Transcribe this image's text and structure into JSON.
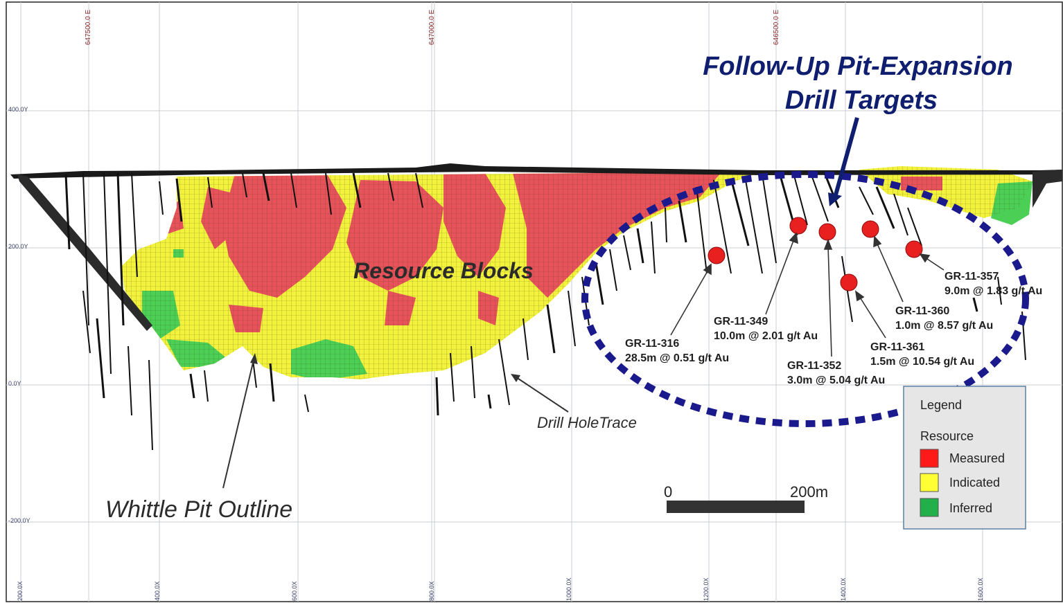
{
  "title": {
    "line1": "Follow-Up Pit-Expansion",
    "line2": "Drill Targets"
  },
  "top_axis_labels": [
    "647500.0 E",
    "647000.0 E",
    "646500.0 E"
  ],
  "left_axis_labels": [
    "400.0Y",
    "200.0Y",
    "0.0Y",
    "-200.0Y"
  ],
  "bottom_axis_labels": [
    "200.0X",
    "400.0X",
    "600.0X",
    "800.0X",
    "1000.0X",
    "1200.0X",
    "1400.0X",
    "1600.0X"
  ],
  "labels": {
    "resource_blocks": "Resource Blocks",
    "drill_hole_trace": "Drill HoleTrace",
    "whittle_pit": "Whittle Pit Outline"
  },
  "drill_hits": [
    {
      "hole": "GR-11-316",
      "result": "28.5m @ 0.51 g/t Au"
    },
    {
      "hole": "GR-11-349",
      "result": "10.0m @ 2.01 g/t Au"
    },
    {
      "hole": "GR-11-352",
      "result": "3.0m @ 5.04 g/t Au"
    },
    {
      "hole": "GR-11-361",
      "result": "1.5m @ 10.54 g/t Au"
    },
    {
      "hole": "GR-11-360",
      "result": "1.0m @ 8.57 g/t Au"
    },
    {
      "hole": "GR-11-357",
      "result": "9.0m @ 1.83 g/t Au"
    }
  ],
  "scale_bar": {
    "start": "0",
    "end": "200m"
  },
  "legend": {
    "title": "Legend",
    "group": "Resource",
    "items": [
      {
        "label": "Measured",
        "color": "#ff1a1a"
      },
      {
        "label": "Indicated",
        "color": "#ffff33"
      },
      {
        "label": "Inferred",
        "color": "#22b04a"
      }
    ]
  },
  "colors": {
    "measured_blocks": "#e8525a",
    "indicated_blocks": "#f2f23c",
    "inferred_blocks": "#4ccf55",
    "target_ellipse": "#1a1a8c",
    "target_dot": "#e82020",
    "title": "#0f1e6e"
  }
}
